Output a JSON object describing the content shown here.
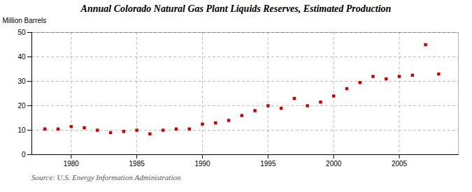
{
  "chart_data": {
    "type": "scatter",
    "title": "Annual Colorado Natural Gas Plant Liquids Reserves, Estimated Production",
    "ylabel": "Million Barrels",
    "annotations": [
      "Source: U.S. Energy Information Administration"
    ],
    "x": [
      1978,
      1979,
      1980,
      1981,
      1982,
      1983,
      1984,
      1985,
      1986,
      1987,
      1988,
      1989,
      1990,
      1991,
      1992,
      1993,
      1994,
      1995,
      1996,
      1997,
      1998,
      1999,
      2000,
      2001,
      2002,
      2003,
      2004,
      2005,
      2006,
      2007,
      2008
    ],
    "values": [
      10.5,
      10.5,
      11.5,
      11.0,
      10.0,
      9.0,
      9.5,
      10.0,
      8.5,
      10.0,
      10.5,
      10.5,
      12.5,
      13.0,
      14.0,
      16.0,
      18.0,
      20.0,
      19.0,
      23.0,
      20.0,
      21.5,
      24.0,
      27.0,
      29.5,
      32.0,
      31.0,
      32.0,
      32.5,
      45.0,
      33.0
    ],
    "color": "#cc0000",
    "marker": "square",
    "xlim": [
      1977,
      2009.5
    ],
    "xticks": [
      1980,
      1985,
      1990,
      1995,
      2000,
      2005
    ],
    "ylim": [
      0,
      50
    ],
    "yticks": [
      0,
      10,
      20,
      30,
      40,
      50
    ],
    "grid": true
  }
}
